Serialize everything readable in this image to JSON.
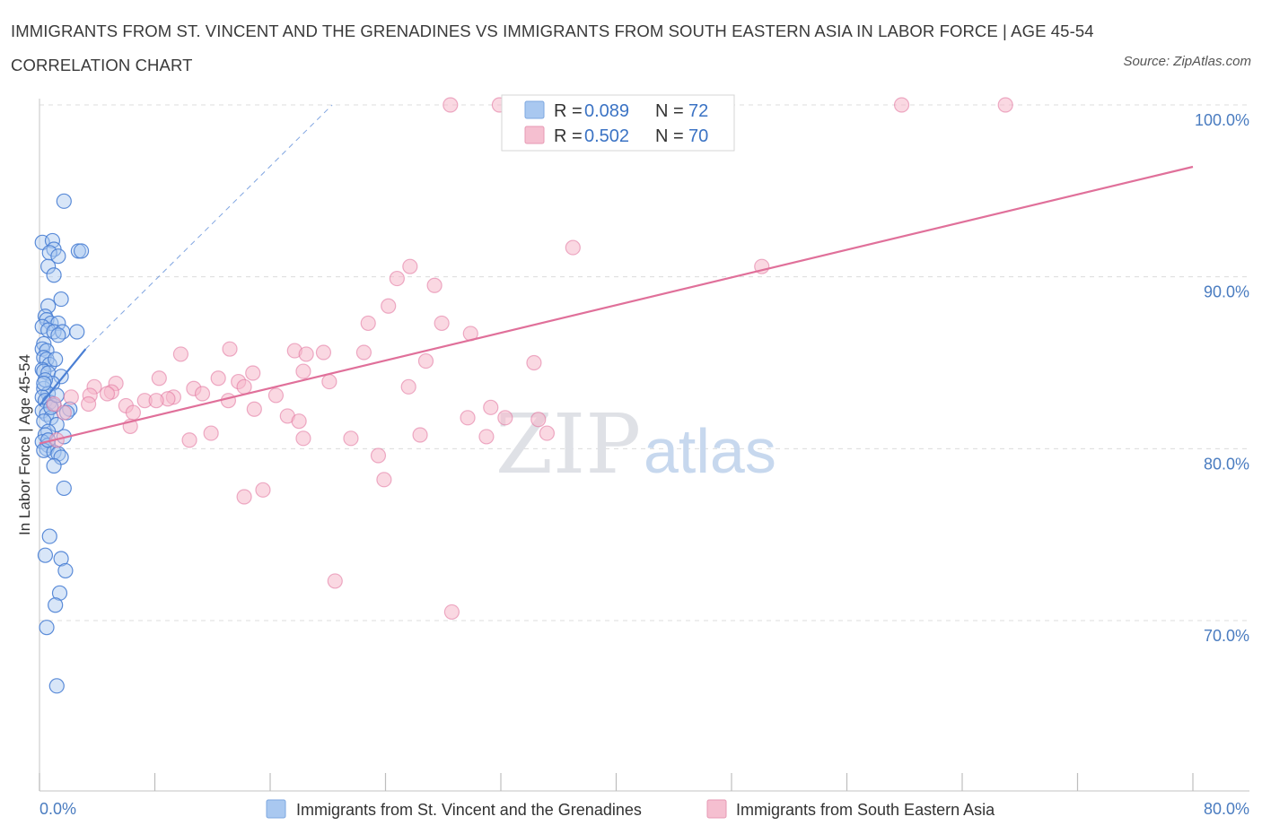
{
  "title": "IMMIGRANTS FROM ST. VINCENT AND THE GRENADINES VS IMMIGRANTS FROM SOUTH EASTERN ASIA IN LABOR FORCE | AGE 45-54 CORRELATION CHART",
  "source": "Source: ZipAtlas.com",
  "watermark": {
    "zip": "ZIP",
    "atlas": "atlas"
  },
  "colors": {
    "blue": "#4a7fd4",
    "blue_fill": "#a9c8f0",
    "pink": "#e0709a",
    "pink_fill": "#f5b8cb",
    "tick": "#4a7cc0"
  },
  "legend": {
    "r_label": "R =",
    "n_label": "N =",
    "rows": [
      {
        "r": "0.089",
        "n": "72"
      },
      {
        "r": "0.502",
        "n": "70"
      }
    ]
  },
  "chart_data": {
    "type": "scatter",
    "title": "IMMIGRANTS FROM ST. VINCENT AND THE GRENADINES VS IMMIGRANTS FROM SOUTH EASTERN ASIA IN LABOR FORCE | AGE 45-54 CORRELATION CHART",
    "xlabel": "",
    "ylabel": "In Labor Force | Age 45-54",
    "xlim": [
      0,
      80
    ],
    "ylim": [
      60,
      100
    ],
    "x_tick_labels": [
      "0.0%",
      "80.0%"
    ],
    "y_ticks": [
      70,
      80,
      90,
      100
    ],
    "y_tick_labels": [
      "70.0%",
      "80.0%",
      "90.0%",
      "100.0%"
    ],
    "grid": true,
    "legend_position": "top-center",
    "series": [
      {
        "name": "Immigrants from St. Vincent and the Grenadines",
        "color": "#4a7fd4",
        "R": 0.089,
        "N": 72,
        "trend": {
          "x": [
            0.0,
            3.2
          ],
          "y": [
            82.5,
            85.8
          ]
        },
        "trend_dashed": {
          "x": [
            3.2,
            20.3
          ],
          "y": [
            85.8,
            100.0
          ]
        },
        "points": [
          [
            1.7,
            94.4
          ],
          [
            0.2,
            92.0
          ],
          [
            0.9,
            92.1
          ],
          [
            1.0,
            91.6
          ],
          [
            2.7,
            91.5
          ],
          [
            2.9,
            91.5
          ],
          [
            0.7,
            91.4
          ],
          [
            1.3,
            91.2
          ],
          [
            0.6,
            90.6
          ],
          [
            1.0,
            90.1
          ],
          [
            1.5,
            88.7
          ],
          [
            0.6,
            88.3
          ],
          [
            0.4,
            87.7
          ],
          [
            0.5,
            87.5
          ],
          [
            0.8,
            87.3
          ],
          [
            1.3,
            87.3
          ],
          [
            0.2,
            87.1
          ],
          [
            0.6,
            86.9
          ],
          [
            1.0,
            86.8
          ],
          [
            1.6,
            86.8
          ],
          [
            2.6,
            86.8
          ],
          [
            1.3,
            86.6
          ],
          [
            0.3,
            86.1
          ],
          [
            0.2,
            85.8
          ],
          [
            0.5,
            85.7
          ],
          [
            0.3,
            85.3
          ],
          [
            0.5,
            85.2
          ],
          [
            0.7,
            84.9
          ],
          [
            0.2,
            84.6
          ],
          [
            0.3,
            84.5
          ],
          [
            0.6,
            84.4
          ],
          [
            1.5,
            84.2
          ],
          [
            0.9,
            83.8
          ],
          [
            0.3,
            83.5
          ],
          [
            0.6,
            83.2
          ],
          [
            0.2,
            83.0
          ],
          [
            0.4,
            82.8
          ],
          [
            0.7,
            82.7
          ],
          [
            1.0,
            82.5
          ],
          [
            2.1,
            82.3
          ],
          [
            0.2,
            82.2
          ],
          [
            0.5,
            82.0
          ],
          [
            0.8,
            81.8
          ],
          [
            0.3,
            81.6
          ],
          [
            1.2,
            81.4
          ],
          [
            0.6,
            81.0
          ],
          [
            0.4,
            80.8
          ],
          [
            1.7,
            80.7
          ],
          [
            0.2,
            80.4
          ],
          [
            0.6,
            80.2
          ],
          [
            0.5,
            80.0
          ],
          [
            0.3,
            79.9
          ],
          [
            1.0,
            79.8
          ],
          [
            1.3,
            79.7
          ],
          [
            1.5,
            79.5
          ],
          [
            1.0,
            79.0
          ],
          [
            1.7,
            77.7
          ],
          [
            0.7,
            74.9
          ],
          [
            0.4,
            73.8
          ],
          [
            1.5,
            73.6
          ],
          [
            1.8,
            72.9
          ],
          [
            1.4,
            71.6
          ],
          [
            1.1,
            70.9
          ],
          [
            0.5,
            69.6
          ],
          [
            1.2,
            66.2
          ],
          [
            0.4,
            84.0
          ],
          [
            1.1,
            85.2
          ],
          [
            0.3,
            83.8
          ],
          [
            0.8,
            82.4
          ],
          [
            1.9,
            82.1
          ],
          [
            0.6,
            80.5
          ],
          [
            1.2,
            83.1
          ]
        ]
      },
      {
        "name": "Immigrants from South Eastern Asia",
        "color": "#e0709a",
        "R": 0.502,
        "N": 70,
        "trend": {
          "x": [
            0.0,
            80.0
          ],
          "y": [
            80.3,
            96.4
          ]
        },
        "points": [
          [
            28.5,
            100.0
          ],
          [
            31.9,
            100.0
          ],
          [
            59.8,
            100.0
          ],
          [
            67.0,
            100.0
          ],
          [
            37.0,
            91.7
          ],
          [
            25.7,
            90.6
          ],
          [
            50.1,
            90.6
          ],
          [
            24.8,
            89.9
          ],
          [
            27.4,
            89.5
          ],
          [
            24.2,
            88.3
          ],
          [
            22.8,
            87.3
          ],
          [
            27.9,
            87.3
          ],
          [
            29.9,
            86.7
          ],
          [
            13.2,
            85.8
          ],
          [
            17.7,
            85.7
          ],
          [
            19.7,
            85.6
          ],
          [
            22.5,
            85.6
          ],
          [
            9.8,
            85.5
          ],
          [
            18.5,
            85.5
          ],
          [
            26.8,
            85.1
          ],
          [
            34.3,
            85.0
          ],
          [
            18.3,
            84.5
          ],
          [
            14.8,
            84.4
          ],
          [
            8.3,
            84.1
          ],
          [
            12.4,
            84.1
          ],
          [
            13.8,
            83.9
          ],
          [
            20.1,
            83.9
          ],
          [
            5.3,
            83.8
          ],
          [
            3.8,
            83.6
          ],
          [
            14.2,
            83.6
          ],
          [
            25.6,
            83.6
          ],
          [
            10.7,
            83.5
          ],
          [
            5.0,
            83.3
          ],
          [
            11.3,
            83.2
          ],
          [
            4.7,
            83.2
          ],
          [
            3.5,
            83.1
          ],
          [
            16.4,
            83.1
          ],
          [
            2.2,
            83.0
          ],
          [
            9.3,
            83.0
          ],
          [
            8.9,
            82.9
          ],
          [
            7.3,
            82.8
          ],
          [
            8.1,
            82.8
          ],
          [
            13.1,
            82.8
          ],
          [
            1.0,
            82.6
          ],
          [
            3.4,
            82.6
          ],
          [
            6.0,
            82.5
          ],
          [
            31.3,
            82.4
          ],
          [
            14.9,
            82.3
          ],
          [
            6.5,
            82.1
          ],
          [
            1.7,
            82.1
          ],
          [
            17.2,
            81.9
          ],
          [
            29.7,
            81.8
          ],
          [
            32.3,
            81.8
          ],
          [
            34.6,
            81.7
          ],
          [
            18.0,
            81.6
          ],
          [
            6.3,
            81.3
          ],
          [
            11.9,
            80.9
          ],
          [
            35.2,
            80.9
          ],
          [
            26.4,
            80.8
          ],
          [
            31.0,
            80.7
          ],
          [
            18.3,
            80.6
          ],
          [
            21.6,
            80.6
          ],
          [
            10.4,
            80.5
          ],
          [
            23.5,
            79.6
          ],
          [
            23.9,
            78.2
          ],
          [
            15.5,
            77.6
          ],
          [
            14.2,
            77.2
          ],
          [
            20.5,
            72.3
          ],
          [
            28.6,
            70.5
          ],
          [
            1.2,
            80.5
          ]
        ]
      }
    ]
  }
}
